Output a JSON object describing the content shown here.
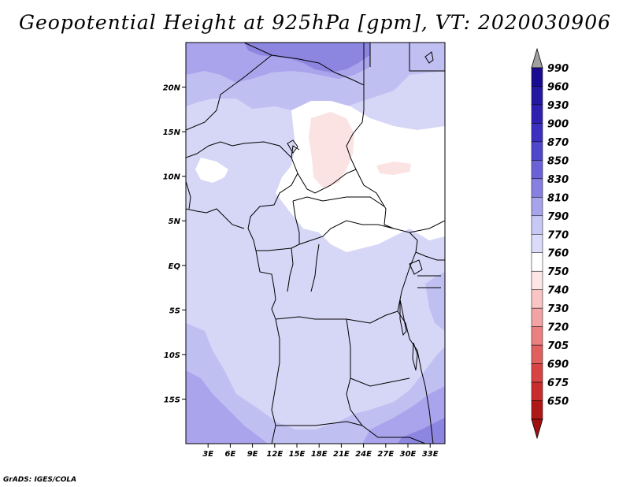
{
  "title": "Geopotential Height at 925hPa [gpm], VT: 2020030906",
  "footer": "GrADS: IGES/COLA",
  "map": {
    "lon_range": [
      0,
      35
    ],
    "lat_range": [
      -20,
      25
    ],
    "lat_ticks": [
      {
        "value": 20,
        "label": "20N"
      },
      {
        "value": 15,
        "label": "15N"
      },
      {
        "value": 10,
        "label": "10N"
      },
      {
        "value": 5,
        "label": "5N"
      },
      {
        "value": 0,
        "label": "EQ"
      },
      {
        "value": -5,
        "label": "5S"
      },
      {
        "value": -10,
        "label": "10S"
      },
      {
        "value": -15,
        "label": "15S"
      }
    ],
    "lon_ticks": [
      {
        "value": 3,
        "label": "3E"
      },
      {
        "value": 6,
        "label": "6E"
      },
      {
        "value": 9,
        "label": "9E"
      },
      {
        "value": 12,
        "label": "12E"
      },
      {
        "value": 15,
        "label": "15E"
      },
      {
        "value": 18,
        "label": "18E"
      },
      {
        "value": 21,
        "label": "21E"
      },
      {
        "value": 24,
        "label": "24E"
      },
      {
        "value": 27,
        "label": "27E"
      },
      {
        "value": 30,
        "label": "30E"
      },
      {
        "value": 33,
        "label": "33E"
      }
    ]
  },
  "colorbar": {
    "levels": [
      {
        "label": "990",
        "color": "#1a0c90"
      },
      {
        "label": "960",
        "color": "#2518a0"
      },
      {
        "label": "930",
        "color": "#3020b0"
      },
      {
        "label": "900",
        "color": "#3c30c0"
      },
      {
        "label": "870",
        "color": "#5048cc"
      },
      {
        "label": "850",
        "color": "#6c62d8"
      },
      {
        "label": "830",
        "color": "#8880e0"
      },
      {
        "label": "810",
        "color": "#a8a4ec"
      },
      {
        "label": "790",
        "color": "#c8c8f4"
      },
      {
        "label": "770",
        "color": "#dcdcfa"
      },
      {
        "label": "760",
        "color": "#ffffff"
      },
      {
        "label": "750",
        "color": "#fde6e6"
      },
      {
        "label": "740",
        "color": "#f8c4c4"
      },
      {
        "label": "730",
        "color": "#f2a4a4"
      },
      {
        "label": "720",
        "color": "#ea8080"
      },
      {
        "label": "705",
        "color": "#e06060"
      },
      {
        "label": "690",
        "color": "#d84444"
      },
      {
        "label": "675",
        "color": "#c82c2c"
      },
      {
        "label": "650",
        "color": "#b01818"
      }
    ],
    "over_color": "#a0a0a0",
    "under_color": "#a01010"
  },
  "colors": {
    "pale_lavender": "#d6d6f6",
    "light_purple": "#c0bff2",
    "medium_purple": "#aaa4ec",
    "deep_purple": "#8c86e0",
    "white": "#ffffff",
    "light_pink": "#fbe3e3"
  }
}
